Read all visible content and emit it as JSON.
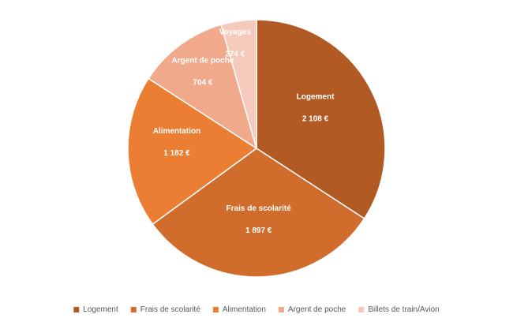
{
  "chart_data": {
    "type": "pie",
    "title": "",
    "categories": [
      "Logement",
      "Frais de scolarité",
      "Alimentation",
      "Argent de poche",
      "Billets de train/Avion"
    ],
    "values": [
      2108,
      1897,
      1182,
      704,
      274
    ],
    "value_labels": [
      "2 108 €",
      "1 897 €",
      "1 182 €",
      "704 €",
      "274 €"
    ],
    "slice_labels": [
      "Logement",
      "Frais de scolarité",
      "Alimentation",
      "Argent de poche",
      "Voyages"
    ],
    "colors": [
      "#b15a24",
      "#d06c2c",
      "#ec7e33",
      "#f0a98a",
      "#f5c9bc"
    ],
    "legend": {
      "position": "bottom",
      "entries": [
        "Logement",
        "Frais de scolarité",
        "Alimentation",
        "Argent de poche",
        "Billets de train/Avion"
      ]
    },
    "start_angle": "12 o'clock, clockwise"
  }
}
